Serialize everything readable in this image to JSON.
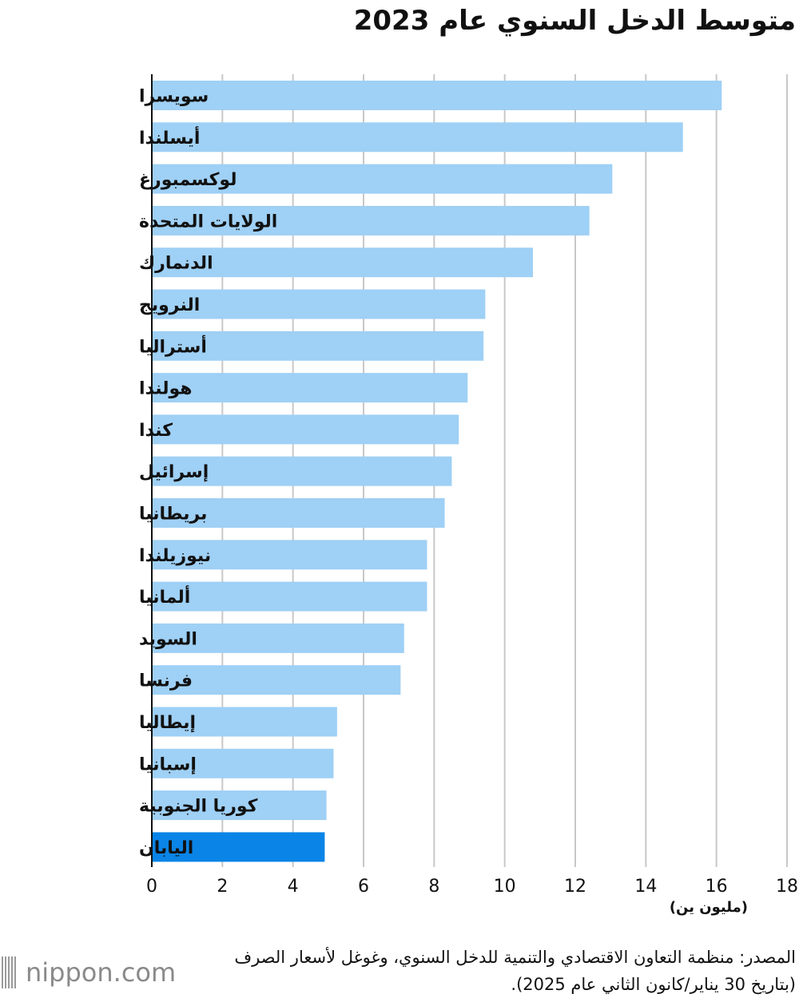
{
  "title": "متوسط الدخل السنوي عام 2023",
  "chart_data": {
    "type": "bar",
    "orientation": "horizontal",
    "categories": [
      "سويسرا",
      "أيسلندا",
      "لوكسمبورغ",
      "الولايات المتحدة",
      "الدنمارك",
      "النرويج",
      "أستراليا",
      "هولندا",
      "كندا",
      "إسرائيل",
      "بريطانيا",
      "نيوزيلندا",
      "ألمانيا",
      "السويد",
      "فرنسا",
      "إيطاليا",
      "إسبانيا",
      "كوريا الجنوبية",
      "اليابان"
    ],
    "values": [
      16.15,
      15.05,
      13.05,
      12.4,
      10.8,
      9.45,
      9.4,
      8.95,
      8.7,
      8.5,
      8.3,
      7.8,
      7.8,
      7.15,
      7.05,
      5.25,
      5.15,
      4.95,
      4.9
    ],
    "highlight_category": "اليابان",
    "xlim": [
      0,
      18
    ],
    "xticks": [
      0,
      2,
      4,
      6,
      8,
      10,
      12,
      14,
      16,
      18
    ],
    "xlabel": "(مليون ين)",
    "grid": true,
    "colors": {
      "bar": "#9fd0f5",
      "highlight": "#0a84e6",
      "grid": "#c8c8c8"
    }
  },
  "source": "المصدر: منظمة التعاون الاقتصادي والتنمية للدخل السنوي، وغوغل لأسعار الصرف (بتاريخ 30 يناير/كانون الثاني عام 2025).",
  "logo": {
    "text": "nippon.com"
  }
}
